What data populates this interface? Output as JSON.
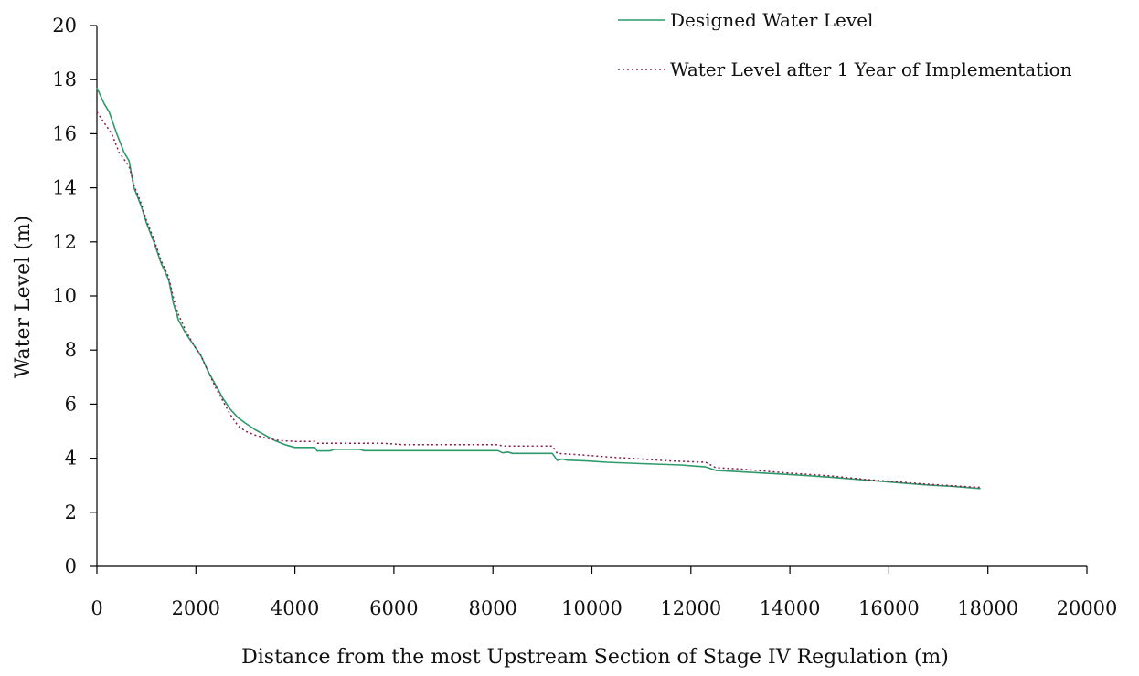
{
  "chart_data": {
    "type": "line",
    "xlabel": "Distance from the most Upstream Section of Stage IV Regulation (m)",
    "ylabel": "Water Level (m)",
    "xlim": [
      0,
      20000
    ],
    "ylim": [
      0,
      20
    ],
    "x_ticks": [
      0,
      2000,
      4000,
      6000,
      8000,
      10000,
      12000,
      14000,
      16000,
      18000,
      20000
    ],
    "y_ticks": [
      0,
      2,
      4,
      6,
      8,
      10,
      12,
      14,
      16,
      18,
      20
    ],
    "grid": false,
    "legend_position": "top-right",
    "series": [
      {
        "name": "Designed Water Level",
        "color": "#2e9a6a",
        "style": "solid",
        "points": [
          [
            0,
            17.7
          ],
          [
            150,
            17.1
          ],
          [
            250,
            16.8
          ],
          [
            400,
            16.0
          ],
          [
            550,
            15.3
          ],
          [
            650,
            15.0
          ],
          [
            750,
            14.0
          ],
          [
            900,
            13.3
          ],
          [
            1000,
            12.7
          ],
          [
            1150,
            12.0
          ],
          [
            1300,
            11.2
          ],
          [
            1450,
            10.6
          ],
          [
            1550,
            9.7
          ],
          [
            1650,
            9.1
          ],
          [
            1800,
            8.6
          ],
          [
            1950,
            8.2
          ],
          [
            2100,
            7.8
          ],
          [
            2250,
            7.2
          ],
          [
            2400,
            6.7
          ],
          [
            2550,
            6.2
          ],
          [
            2700,
            5.8
          ],
          [
            2850,
            5.5
          ],
          [
            3000,
            5.3
          ],
          [
            3200,
            5.05
          ],
          [
            3400,
            4.85
          ],
          [
            3600,
            4.65
          ],
          [
            3800,
            4.5
          ],
          [
            4000,
            4.4
          ],
          [
            4200,
            4.4
          ],
          [
            4400,
            4.4
          ],
          [
            4450,
            4.27
          ],
          [
            4700,
            4.27
          ],
          [
            4800,
            4.33
          ],
          [
            5300,
            4.33
          ],
          [
            5400,
            4.28
          ],
          [
            8100,
            4.28
          ],
          [
            8200,
            4.2
          ],
          [
            8300,
            4.23
          ],
          [
            8400,
            4.18
          ],
          [
            9200,
            4.18
          ],
          [
            9300,
            3.92
          ],
          [
            9400,
            3.97
          ],
          [
            9500,
            3.93
          ],
          [
            9900,
            3.9
          ],
          [
            10300,
            3.85
          ],
          [
            11000,
            3.8
          ],
          [
            11800,
            3.75
          ],
          [
            12300,
            3.68
          ],
          [
            12500,
            3.55
          ],
          [
            12800,
            3.52
          ],
          [
            13500,
            3.45
          ],
          [
            14000,
            3.4
          ],
          [
            14800,
            3.3
          ],
          [
            15500,
            3.2
          ],
          [
            16000,
            3.12
          ],
          [
            16700,
            3.02
          ],
          [
            17300,
            2.96
          ],
          [
            17850,
            2.88
          ]
        ]
      },
      {
        "name": "Water Level after 1 Year of Implementation",
        "color": "#8b1a4a",
        "style": "dotted",
        "points": [
          [
            0,
            16.8
          ],
          [
            150,
            16.4
          ],
          [
            300,
            16.0
          ],
          [
            450,
            15.3
          ],
          [
            650,
            14.8
          ],
          [
            750,
            14.1
          ],
          [
            900,
            13.4
          ],
          [
            1000,
            12.8
          ],
          [
            1150,
            12.1
          ],
          [
            1300,
            11.3
          ],
          [
            1450,
            10.7
          ],
          [
            1550,
            9.9
          ],
          [
            1650,
            9.3
          ],
          [
            1800,
            8.7
          ],
          [
            1950,
            8.2
          ],
          [
            2100,
            7.8
          ],
          [
            2250,
            7.2
          ],
          [
            2400,
            6.6
          ],
          [
            2550,
            6.1
          ],
          [
            2700,
            5.6
          ],
          [
            2850,
            5.2
          ],
          [
            3000,
            5.0
          ],
          [
            3200,
            4.85
          ],
          [
            3400,
            4.75
          ],
          [
            3700,
            4.65
          ],
          [
            4000,
            4.62
          ],
          [
            4400,
            4.62
          ],
          [
            4450,
            4.55
          ],
          [
            5800,
            4.55
          ],
          [
            6200,
            4.5
          ],
          [
            8100,
            4.5
          ],
          [
            8200,
            4.45
          ],
          [
            9200,
            4.45
          ],
          [
            9300,
            4.18
          ],
          [
            9800,
            4.12
          ],
          [
            10300,
            4.05
          ],
          [
            11000,
            3.97
          ],
          [
            11600,
            3.9
          ],
          [
            12300,
            3.85
          ],
          [
            12500,
            3.65
          ],
          [
            13000,
            3.6
          ],
          [
            13500,
            3.52
          ],
          [
            14000,
            3.45
          ],
          [
            14800,
            3.35
          ],
          [
            15500,
            3.22
          ],
          [
            16000,
            3.15
          ],
          [
            16700,
            3.05
          ],
          [
            17300,
            2.98
          ],
          [
            17850,
            2.92
          ]
        ]
      }
    ]
  }
}
